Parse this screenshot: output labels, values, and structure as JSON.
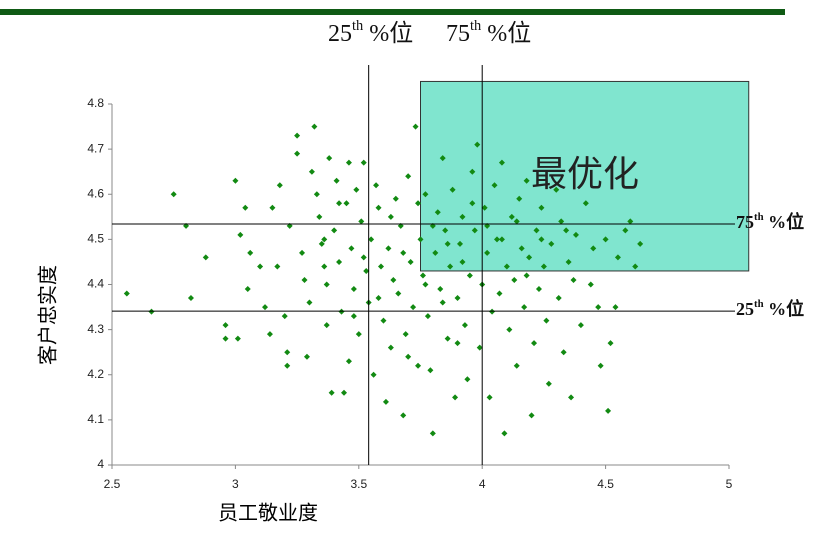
{
  "chart_data": {
    "type": "scatter",
    "xlabel": "员工敬业度",
    "ylabel": "客户忠实度",
    "top_labels": [
      {
        "num": "25",
        "sup": "th",
        "rest": " %位"
      },
      {
        "num": "75",
        "sup": "th",
        "rest": " %位"
      }
    ],
    "right_labels": [
      {
        "num": "75",
        "sup": "th",
        "rest": " %位"
      },
      {
        "num": "25",
        "sup": "th",
        "rest": " %位"
      }
    ],
    "annotation": "最优化",
    "highlight": {
      "color": "#80e5cf",
      "xlim": [
        3.75,
        5.08
      ],
      "ylim": [
        4.43,
        4.85
      ]
    },
    "vlines": [
      3.54,
      4.0
    ],
    "hlines": [
      4.534,
      4.341
    ],
    "xlim": [
      2.5,
      5
    ],
    "ylim": [
      4,
      4.8
    ],
    "xticks": [
      2.5,
      3,
      3.5,
      4,
      4.5,
      5
    ],
    "yticks": [
      4,
      4.1,
      4.2,
      4.3,
      4.4,
      4.5,
      4.6,
      4.7,
      4.8
    ],
    "x": [
      2.56,
      2.66,
      2.75,
      2.8,
      2.82,
      2.88,
      2.96,
      2.96,
      3.0,
      3.01,
      3.02,
      3.04,
      3.05,
      3.06,
      3.1,
      3.12,
      3.15,
      3.17,
      3.2,
      3.21,
      3.21,
      3.22,
      3.25,
      3.25,
      3.27,
      3.28,
      3.3,
      3.31,
      3.32,
      3.33,
      3.34,
      3.35,
      3.36,
      3.37,
      3.37,
      3.38,
      3.39,
      3.4,
      3.41,
      3.42,
      3.43,
      3.44,
      3.45,
      3.46,
      3.47,
      3.48,
      3.49,
      3.5,
      3.51,
      3.52,
      3.53,
      3.54,
      3.55,
      3.56,
      3.57,
      3.58,
      3.59,
      3.6,
      3.61,
      3.62,
      3.63,
      3.64,
      3.65,
      3.66,
      3.67,
      3.68,
      3.69,
      3.7,
      3.71,
      3.72,
      3.73,
      3.74,
      3.75,
      3.76,
      3.77,
      3.78,
      3.79,
      3.8,
      3.81,
      3.82,
      3.83,
      3.84,
      3.85,
      3.86,
      3.87,
      3.88,
      3.89,
      3.9,
      3.91,
      3.92,
      3.93,
      3.94,
      3.95,
      3.96,
      3.97,
      3.98,
      3.99,
      4.0,
      4.01,
      4.02,
      4.03,
      4.04,
      4.05,
      4.06,
      4.07,
      4.08,
      4.09,
      4.1,
      4.11,
      4.12,
      4.13,
      4.14,
      4.15,
      4.16,
      4.17,
      4.18,
      4.19,
      4.2,
      4.21,
      4.22,
      4.23,
      4.24,
      4.25,
      4.26,
      4.27,
      4.28,
      4.3,
      4.31,
      4.32,
      4.33,
      4.35,
      4.36,
      4.37,
      4.38,
      4.4,
      4.42,
      4.45,
      4.47,
      4.48,
      4.5,
      4.51,
      4.52,
      4.54,
      4.55,
      4.58,
      4.6,
      4.62,
      4.64,
      3.14,
      3.18,
      3.29,
      3.46,
      3.52,
      3.58,
      3.63,
      3.68,
      3.74,
      3.8,
      3.86,
      3.92,
      3.96,
      4.02,
      4.08,
      4.14,
      4.18,
      4.24,
      4.34,
      4.44,
      3.7,
      3.77,
      3.84,
      3.9,
      3.48,
      3.42,
      3.36
    ],
    "series": [
      {
        "name": "客户忠实度",
        "color": "#128a12",
        "values": [
          4.38,
          4.34,
          4.6,
          4.53,
          4.37,
          4.46,
          4.31,
          4.28,
          4.63,
          4.28,
          4.51,
          4.57,
          4.39,
          4.47,
          4.44,
          4.35,
          4.57,
          4.44,
          4.33,
          4.25,
          4.22,
          4.53,
          4.73,
          4.69,
          4.47,
          4.41,
          4.36,
          4.65,
          4.75,
          4.6,
          4.55,
          4.49,
          4.44,
          4.4,
          4.31,
          4.68,
          4.16,
          4.52,
          4.63,
          4.45,
          4.34,
          4.16,
          4.58,
          4.23,
          4.48,
          4.39,
          4.61,
          4.29,
          4.54,
          4.67,
          4.43,
          4.36,
          4.5,
          4.2,
          4.62,
          4.57,
          4.44,
          4.32,
          4.14,
          4.48,
          4.26,
          4.41,
          4.59,
          4.38,
          4.53,
          4.11,
          4.29,
          4.64,
          4.45,
          4.35,
          4.75,
          4.22,
          4.5,
          4.42,
          4.6,
          4.33,
          4.21,
          4.07,
          4.47,
          4.56,
          4.39,
          4.68,
          4.52,
          4.28,
          4.44,
          4.61,
          4.15,
          4.37,
          4.49,
          4.55,
          4.31,
          4.19,
          4.42,
          4.65,
          4.52,
          4.71,
          4.26,
          4.4,
          4.57,
          4.47,
          4.15,
          4.34,
          4.62,
          4.5,
          4.38,
          4.67,
          4.07,
          4.44,
          4.3,
          4.55,
          4.41,
          4.22,
          4.59,
          4.48,
          4.35,
          4.63,
          4.46,
          4.11,
          4.27,
          4.52,
          4.39,
          4.57,
          4.44,
          4.32,
          4.18,
          4.49,
          4.61,
          4.37,
          4.54,
          4.25,
          4.45,
          4.15,
          4.41,
          4.51,
          4.31,
          4.58,
          4.48,
          4.35,
          4.22,
          4.5,
          4.12,
          4.27,
          4.35,
          4.46,
          4.52,
          4.54,
          4.44,
          4.49,
          4.29,
          4.62,
          4.24,
          4.67,
          4.46,
          4.37,
          4.55,
          4.47,
          4.58,
          4.53,
          4.49,
          4.45,
          4.58,
          4.53,
          4.5,
          4.54,
          4.42,
          4.5,
          4.52,
          4.4,
          4.24,
          4.4,
          4.36,
          4.27,
          4.33,
          4.58,
          4.5
        ]
      }
    ]
  }
}
